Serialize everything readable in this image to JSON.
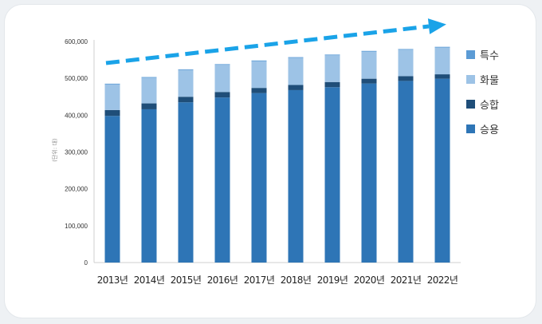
{
  "chart_data": {
    "type": "bar",
    "stacked": true,
    "title": "",
    "xlabel": "",
    "ylabel": "(단위: 대)",
    "ylim": [
      0,
      600000
    ],
    "yticks": [
      0,
      100000,
      200000,
      300000,
      400000,
      500000,
      600000
    ],
    "ytick_labels": [
      "0",
      "100,000",
      "200,000",
      "300,000",
      "400,000",
      "500,000",
      "600,000"
    ],
    "categories": [
      "2013년",
      "2014년",
      "2015년",
      "2016년",
      "2017년",
      "2018년",
      "2019년",
      "2020년",
      "2021년",
      "2022년"
    ],
    "series": [
      {
        "name": "승용",
        "color": "#2e75b6",
        "values": [
          398000,
          416000,
          435000,
          448000,
          460000,
          468000,
          476000,
          486000,
          493000,
          499000
        ]
      },
      {
        "name": "승합",
        "color": "#1f4e79",
        "values": [
          16000,
          16000,
          15000,
          15000,
          14000,
          14000,
          14000,
          13000,
          13000,
          12000
        ]
      },
      {
        "name": "화물",
        "color": "#9dc3e6",
        "values": [
          70000,
          70000,
          73000,
          74000,
          73000,
          74000,
          73000,
          74000,
          72000,
          73000
        ]
      },
      {
        "name": "특수",
        "color": "#5b9bd5",
        "values": [
          1500,
          1500,
          1500,
          1500,
          1500,
          1500,
          1500,
          1500,
          1500,
          1500
        ]
      }
    ],
    "legend_order": [
      "특수",
      "화물",
      "승합",
      "승용"
    ],
    "legend_position": "right",
    "grid": false,
    "trend_arrow": {
      "color": "#1aa3e8",
      "style": "dashed",
      "direction": "up"
    }
  }
}
